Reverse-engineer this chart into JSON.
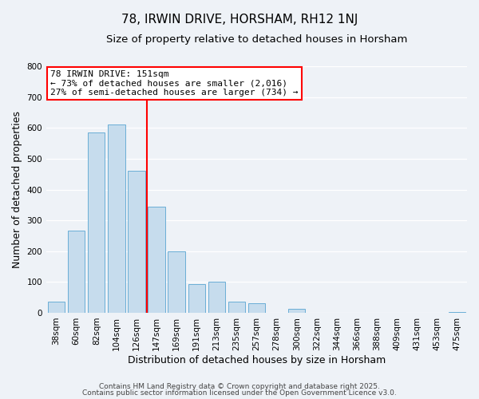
{
  "title": "78, IRWIN DRIVE, HORSHAM, RH12 1NJ",
  "subtitle": "Size of property relative to detached houses in Horsham",
  "bar_labels": [
    "38sqm",
    "60sqm",
    "82sqm",
    "104sqm",
    "126sqm",
    "147sqm",
    "169sqm",
    "191sqm",
    "213sqm",
    "235sqm",
    "257sqm",
    "278sqm",
    "300sqm",
    "322sqm",
    "344sqm",
    "366sqm",
    "388sqm",
    "409sqm",
    "431sqm",
    "453sqm",
    "475sqm"
  ],
  "bar_values": [
    37,
    267,
    585,
    610,
    460,
    345,
    200,
    93,
    100,
    37,
    32,
    0,
    13,
    0,
    0,
    0,
    0,
    0,
    0,
    0,
    2
  ],
  "bar_color": "#c6dced",
  "bar_edge_color": "#6aaed6",
  "ylabel": "Number of detached properties",
  "xlabel": "Distribution of detached houses by size in Horsham",
  "ylim": [
    0,
    800
  ],
  "yticks": [
    0,
    100,
    200,
    300,
    400,
    500,
    600,
    700,
    800
  ],
  "vline_pos": 4.5,
  "vline_color": "red",
  "annotation_title": "78 IRWIN DRIVE: 151sqm",
  "annotation_line1": "← 73% of detached houses are smaller (2,016)",
  "annotation_line2": "27% of semi-detached houses are larger (734) →",
  "annotation_box_color": "white",
  "annotation_box_edge_color": "red",
  "footer_line1": "Contains HM Land Registry data © Crown copyright and database right 2025.",
  "footer_line2": "Contains public sector information licensed under the Open Government Licence v3.0.",
  "background_color": "#eef2f7",
  "grid_color": "#ffffff",
  "title_fontsize": 11,
  "subtitle_fontsize": 9.5,
  "ylabel_fontsize": 9,
  "xlabel_fontsize": 9,
  "tick_fontsize": 7.5,
  "annotation_fontsize": 8,
  "footer_fontsize": 6.5
}
